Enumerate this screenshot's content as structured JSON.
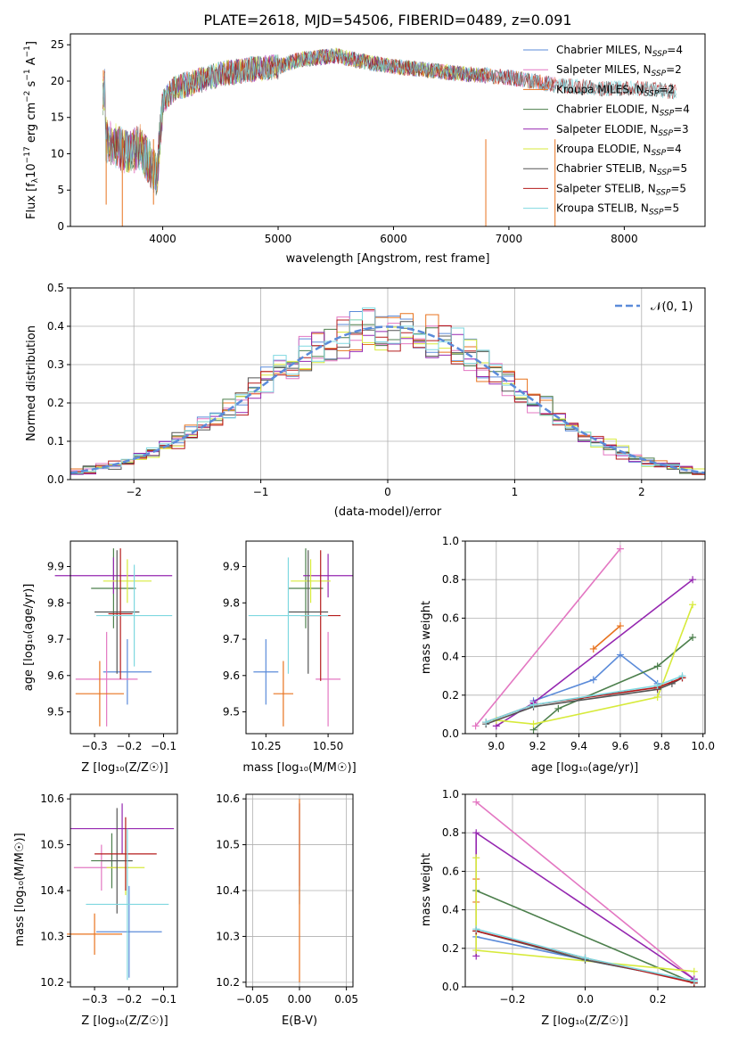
{
  "spectrum": {
    "title": "PLATE=2618, MJD=54506, FIBERID=0489, z=0.091",
    "xlabel": "wavelength [Angstrom, rest frame]",
    "ylabel_parts": [
      "Flux [f",
      "λ",
      "10",
      "−17",
      " erg cm",
      "−2",
      " s",
      "−1",
      " A",
      "−1",
      "]"
    ],
    "xticks": [
      "4000",
      "5000",
      "6000",
      "7000",
      "8000"
    ],
    "yticks": [
      "0",
      "5",
      "10",
      "15",
      "20",
      "25"
    ]
  },
  "legend1": [
    {
      "a": "Chabrier MILES, N",
      "sub": "SSP",
      "b": "=4",
      "color": "#5b8bd9"
    },
    {
      "a": "Salpeter MILES, N",
      "sub": "SSP",
      "b": "=2",
      "color": "#e377c2"
    },
    {
      "a": "Kroupa MILES, N",
      "sub": "SSP",
      "b": "=2",
      "color": "#e8731f"
    },
    {
      "a": "Chabrier ELODIE, N",
      "sub": "SSP",
      "b": "=4",
      "color": "#4c7f4c"
    },
    {
      "a": "Salpeter ELODIE, N",
      "sub": "SSP",
      "b": "=3",
      "color": "#9527b0"
    },
    {
      "a": "Kroupa ELODIE, N",
      "sub": "SSP",
      "b": "=4",
      "color": "#d7ea3b"
    },
    {
      "a": "Chabrier STELIB, N",
      "sub": "SSP",
      "b": "=5",
      "color": "#555555"
    },
    {
      "a": "Salpeter STELIB, N",
      "sub": "SSP",
      "b": "=5",
      "color": "#b51c1c"
    },
    {
      "a": "Kroupa STELIB, N",
      "sub": "SSP",
      "b": "=5",
      "color": "#7fd8e0"
    }
  ],
  "residuals": {
    "xlabel": "(data-model)/error",
    "ylabel": "Normed distribution",
    "xticks": [
      "−2",
      "−1",
      "0",
      "1",
      "2"
    ],
    "yticks": [
      "0.0",
      "0.1",
      "0.2",
      "0.3",
      "0.4",
      "0.5"
    ],
    "legend_label": "𝒩(0, 1)"
  },
  "panels": {
    "z_age": {
      "xlabel": "Z [log₁₀(Z/Z☉)]",
      "ylabel": "age  [log₁₀(age/yr)]",
      "xticks": [
        "−0.3",
        "−0.2",
        "−0.1"
      ],
      "yticks": [
        "9.5",
        "9.6",
        "9.7",
        "9.8",
        "9.9"
      ]
    },
    "mass_age": {
      "xlabel": "mass [log₁₀(M/M☉)]",
      "xticks": [
        "10.25",
        "10.50"
      ],
      "yticks": [
        "9.5",
        "9.6",
        "9.7",
        "9.8",
        "9.9"
      ]
    },
    "age_weight": {
      "xlabel": "age  [log₁₀(age/yr)]",
      "ylabel": "mass weight",
      "xticks": [
        "9.0",
        "9.2",
        "9.4",
        "9.6",
        "9.8",
        "10.0"
      ],
      "yticks": [
        "0.0",
        "0.2",
        "0.4",
        "0.6",
        "0.8",
        "1.0"
      ]
    },
    "z_mass": {
      "xlabel": "Z [log₁₀(Z/Z☉)]",
      "ylabel": "mass [log₁₀(M/M☉)]",
      "xticks": [
        "−0.3",
        "−0.2",
        "−0.1"
      ],
      "yticks": [
        "10.2",
        "10.3",
        "10.4",
        "10.5",
        "10.6"
      ]
    },
    "ebv_mass": {
      "xlabel": "E(B-V)",
      "xticks": [
        "−0.05",
        "0.00",
        "0.05"
      ],
      "yticks": [
        "10.2",
        "10.3",
        "10.4",
        "10.5",
        "10.6"
      ]
    },
    "z_weight": {
      "xlabel": "Z [log₁₀(Z/Z☉)]",
      "ylabel": "mass weight",
      "xticks": [
        "−0.2",
        "0.0",
        "0.2"
      ],
      "yticks": [
        "0.0",
        "0.2",
        "0.4",
        "0.6",
        "0.8",
        "1.0"
      ]
    }
  },
  "chart_data": [
    {
      "type": "line",
      "title": "PLATE=2618, MJD=54506, FIBERID=0489, z=0.091",
      "xlabel": "wavelength [Angstrom, rest frame]",
      "ylabel": "Flux [fλ10^-17 erg cm^-2 s^-1 A^-1]",
      "xlim": [
        3200,
        8700
      ],
      "ylim": [
        0,
        26.5
      ],
      "anchors": [
        [
          3500,
          12
        ],
        [
          3700,
          10
        ],
        [
          3800,
          11
        ],
        [
          3950,
          7
        ],
        [
          4000,
          17
        ],
        [
          4100,
          19
        ],
        [
          4300,
          20
        ],
        [
          4500,
          21
        ],
        [
          4700,
          21.5
        ],
        [
          5000,
          22
        ],
        [
          5200,
          23
        ],
        [
          5500,
          23.5
        ],
        [
          5800,
          22.5
        ],
        [
          6000,
          22
        ],
        [
          6300,
          21.5
        ],
        [
          6600,
          21
        ],
        [
          7000,
          20.5
        ],
        [
          7400,
          19.5
        ],
        [
          7800,
          19
        ],
        [
          8200,
          19
        ],
        [
          8450,
          18.5
        ]
      ],
      "series": [
        {
          "name": "Chabrier MILES, N_SSP=4",
          "xmax": 7400
        },
        {
          "name": "Salpeter MILES, N_SSP=2",
          "xmax": 7400
        },
        {
          "name": "Kroupa MILES, N_SSP=2",
          "xmax": 7400
        },
        {
          "name": "Chabrier ELODIE, N_SSP=4",
          "xmax": 6800
        },
        {
          "name": "Salpeter ELODIE, N_SSP=3",
          "xmax": 6800
        },
        {
          "name": "Kroupa ELODIE, N_SSP=4",
          "xmax": 6800
        },
        {
          "name": "Chabrier STELIB, N_SSP=5",
          "xmax": 8450
        },
        {
          "name": "Salpeter STELIB, N_SSP=5",
          "xmax": 8450
        },
        {
          "name": "Kroupa STELIB, N_SSP=5",
          "xmax": 8450
        }
      ]
    },
    {
      "type": "area",
      "xlabel": "(data-model)/error",
      "ylabel": "Normed distribution",
      "xlim": [
        -2.5,
        2.5
      ],
      "ylim": [
        0,
        0.5
      ],
      "bin_width": 0.1,
      "grid": true,
      "legend": "𝒩(0, 1)",
      "legend_position": "top-right"
    },
    {
      "type": "scatter",
      "xlabel": "Z [log10(Z/Z☉)]",
      "ylabel": "age [log10(age/yr)]",
      "xlim": [
        -0.37,
        -0.06
      ],
      "ylim": [
        9.44,
        9.97
      ],
      "points": [
        {
          "x": -0.205,
          "y": 9.61,
          "xerr": 0.07,
          "yerr": 0.09
        },
        {
          "x": -0.265,
          "y": 9.59,
          "xerr": 0.09,
          "yerr": 0.13
        },
        {
          "x": -0.285,
          "y": 9.55,
          "xerr": 0.07,
          "yerr": 0.09
        },
        {
          "x": -0.245,
          "y": 9.84,
          "xerr": 0.065,
          "yerr": 0.11
        },
        {
          "x": -0.245,
          "y": 9.875,
          "xerr": 0.17,
          "yerr": 0.05
        },
        {
          "x": -0.205,
          "y": 9.86,
          "xerr": 0.07,
          "yerr": 0.06
        },
        {
          "x": -0.235,
          "y": 9.775,
          "xerr": 0.065,
          "yerr": 0.17
        },
        {
          "x": -0.225,
          "y": 9.77,
          "xerr": 0.035,
          "yerr": 0.18
        },
        {
          "x": -0.185,
          "y": 9.765,
          "xerr": 0.11,
          "yerr": 0.14
        }
      ]
    },
    {
      "type": "scatter",
      "xlabel": "mass [log10(M/M☉)]",
      "xlim": [
        10.17,
        10.6
      ],
      "ylim": [
        9.44,
        9.97
      ],
      "points": [
        {
          "x": 10.25,
          "y": 9.61,
          "xerr": 0.05,
          "yerr": 0.09
        },
        {
          "x": 10.5,
          "y": 9.59,
          "xerr": 0.05,
          "yerr": 0.13
        },
        {
          "x": 10.32,
          "y": 9.55,
          "xerr": 0.04,
          "yerr": 0.09
        },
        {
          "x": 10.41,
          "y": 9.84,
          "xerr": 0.07,
          "yerr": 0.11
        },
        {
          "x": 10.5,
          "y": 9.875,
          "xerr": 0.1,
          "yerr": 0.06
        },
        {
          "x": 10.43,
          "y": 9.86,
          "xerr": 0.08,
          "yerr": 0.06
        },
        {
          "x": 10.42,
          "y": 9.775,
          "xerr": 0.08,
          "yerr": 0.17
        },
        {
          "x": 10.47,
          "y": 9.765,
          "xerr": 0.08,
          "yerr": 0.18
        },
        {
          "x": 10.34,
          "y": 9.765,
          "xerr": 0.16,
          "yerr": 0.16
        }
      ]
    },
    {
      "type": "line",
      "xlabel": "age [log10(age/yr)]",
      "ylabel": "mass weight",
      "xlim": [
        8.85,
        10.01
      ],
      "ylim": [
        0,
        1
      ],
      "grid": true,
      "series": [
        {
          "name": "Chabrier MILES, N_SSP=4",
          "x": [
            9.18,
            9.47,
            9.6,
            9.78
          ],
          "y": [
            0.17,
            0.28,
            0.41,
            0.26
          ]
        },
        {
          "name": "Salpeter MILES, N_SSP=2",
          "x": [
            8.9,
            9.6
          ],
          "y": [
            0.04,
            0.96
          ]
        },
        {
          "name": "Kroupa MILES, N_SSP=2",
          "x": [
            9.47,
            9.6
          ],
          "y": [
            0.44,
            0.56
          ]
        },
        {
          "name": "Chabrier ELODIE, N_SSP=4",
          "x": [
            9.18,
            9.3,
            9.78,
            9.95
          ],
          "y": [
            0.02,
            0.13,
            0.35,
            0.5
          ]
        },
        {
          "name": "Salpeter ELODIE, N_SSP=3",
          "x": [
            9.0,
            9.18,
            9.95
          ],
          "y": [
            0.04,
            0.16,
            0.8
          ]
        },
        {
          "name": "Kroupa ELODIE, N_SSP=4",
          "x": [
            9.0,
            9.18,
            9.78,
            9.95
          ],
          "y": [
            0.07,
            0.05,
            0.19,
            0.67
          ]
        },
        {
          "name": "Chabrier STELIB, N_SSP=5",
          "x": [
            8.95,
            9.18,
            9.78,
            9.85,
            9.9
          ],
          "y": [
            0.05,
            0.14,
            0.23,
            0.26,
            0.29
          ]
        },
        {
          "name": "Salpeter STELIB, N_SSP=5",
          "x": [
            8.95,
            9.18,
            9.78,
            9.9
          ],
          "y": [
            0.06,
            0.15,
            0.24,
            0.29
          ]
        },
        {
          "name": "Kroupa STELIB, N_SSP=5",
          "x": [
            8.95,
            9.18,
            9.78,
            9.9
          ],
          "y": [
            0.06,
            0.15,
            0.25,
            0.3
          ]
        }
      ]
    },
    {
      "type": "scatter",
      "xlabel": "Z [log10(Z/Z☉)]",
      "ylabel": "mass [log10(M/M☉)]",
      "xlim": [
        -0.37,
        -0.06
      ],
      "ylim": [
        10.19,
        10.61
      ],
      "points": [
        {
          "x": -0.2,
          "y": 10.31,
          "xerr": 0.095,
          "yerr": 0.1
        },
        {
          "x": -0.28,
          "y": 10.45,
          "xerr": 0.08,
          "yerr": 0.05
        },
        {
          "x": -0.3,
          "y": 10.305,
          "xerr": 0.08,
          "yerr": 0.045
        },
        {
          "x": -0.25,
          "y": 10.465,
          "xerr": 0.06,
          "yerr": 0.06
        },
        {
          "x": -0.22,
          "y": 10.535,
          "xerr": 0.15,
          "yerr": 0.055
        },
        {
          "x": -0.21,
          "y": 10.45,
          "xerr": 0.055,
          "yerr": 0.06
        },
        {
          "x": -0.235,
          "y": 10.465,
          "xerr": 0.045,
          "yerr": 0.115
        },
        {
          "x": -0.21,
          "y": 10.48,
          "xerr": 0.09,
          "yerr": 0.08
        },
        {
          "x": -0.205,
          "y": 10.37,
          "xerr": 0.12,
          "yerr": 0.165
        }
      ]
    },
    {
      "type": "scatter",
      "xlabel": "E(B-V)",
      "xlim": [
        -0.057,
        0.057
      ],
      "ylim": [
        10.19,
        10.61
      ],
      "points": [
        {
          "x": 0.0,
          "y": 10.48,
          "yerr": 0.11
        },
        {
          "x": 0.0,
          "y": 10.5,
          "yerr": 0.09
        },
        {
          "x": 0.0,
          "y": 10.4,
          "yerr": 0.2
        }
      ]
    },
    {
      "type": "line",
      "xlabel": "Z [log10(Z/Z☉)]",
      "ylabel": "mass weight",
      "xlim": [
        -0.33,
        0.33
      ],
      "ylim": [
        0,
        1
      ],
      "grid": true,
      "series": [
        {
          "name": "Chabrier MILES, N_SSP=4",
          "x": [
            -0.3,
            0.0,
            0.3
          ],
          "y": [
            0.26,
            0.14,
            0.03
          ]
        },
        {
          "name": "Salpeter MILES, N_SSP=2",
          "x": [
            -0.3,
            0.3
          ],
          "y": [
            0.96,
            0.04
          ]
        },
        {
          "name": "Kroupa MILES, N_SSP=2",
          "x": [
            -0.3,
            -0.3
          ],
          "y": [
            0.44,
            0.56
          ]
        },
        {
          "name": "Chabrier ELODIE, N_SSP=4",
          "x": [
            -0.3,
            0.3
          ],
          "y": [
            0.5,
            0.02
          ]
        },
        {
          "name": "Salpeter ELODIE, N_SSP=3",
          "x": [
            -0.3,
            -0.3,
            0.3
          ],
          "y": [
            0.16,
            0.8,
            0.04
          ]
        },
        {
          "name": "Kroupa ELODIE, N_SSP=4",
          "x": [
            -0.3,
            -0.3,
            0.3
          ],
          "y": [
            0.67,
            0.19,
            0.08
          ]
        },
        {
          "name": "Chabrier STELIB, N_SSP=5",
          "x": [
            -0.3,
            0.0,
            0.3
          ],
          "y": [
            0.29,
            0.14,
            0.03
          ]
        },
        {
          "name": "Salpeter STELIB, N_SSP=5",
          "x": [
            -0.3,
            0.0,
            0.3
          ],
          "y": [
            0.29,
            0.15,
            0.02
          ]
        },
        {
          "name": "Kroupa STELIB, N_SSP=5",
          "x": [
            -0.3,
            0.0,
            0.3
          ],
          "y": [
            0.3,
            0.15,
            0.03
          ]
        }
      ]
    }
  ]
}
